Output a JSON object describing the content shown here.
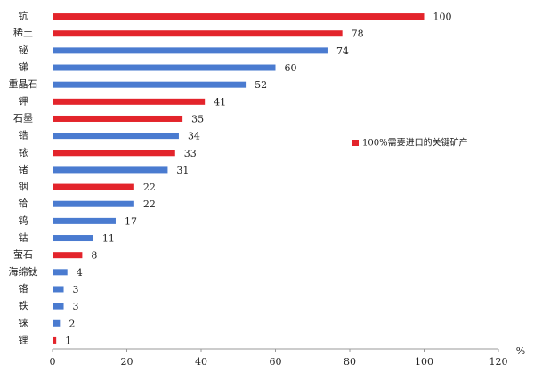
{
  "chart_data": {
    "type": "bar",
    "orientation": "horizontal",
    "categories": [
      "钪",
      "稀土",
      "铋",
      "锑",
      "重晶石",
      "钾",
      "石墨",
      "锆",
      "铱",
      "锗",
      "铟",
      "铪",
      "钨",
      "钴",
      "萤石",
      "海绵钛",
      "铬",
      "铁",
      "铼",
      "锂"
    ],
    "values": [
      100,
      78,
      74,
      60,
      52,
      41,
      35,
      34,
      33,
      31,
      22,
      22,
      17,
      11,
      8,
      4,
      3,
      3,
      2,
      1
    ],
    "colors": [
      "#e3242b",
      "#e3242b",
      "#4a7bd0",
      "#4a7bd0",
      "#4a7bd0",
      "#e3242b",
      "#e3242b",
      "#4a7bd0",
      "#e3242b",
      "#4a7bd0",
      "#e3242b",
      "#4a7bd0",
      "#4a7bd0",
      "#4a7bd0",
      "#e3242b",
      "#4a7bd0",
      "#4a7bd0",
      "#4a7bd0",
      "#4a7bd0",
      "#e3242b"
    ],
    "legend": {
      "label": "100%需要进口的关键矿产",
      "color": "#e3242b"
    },
    "xlabel": "%",
    "xlim": [
      0,
      120
    ],
    "xticks": [
      0,
      20,
      40,
      60,
      80,
      100,
      120
    ]
  }
}
